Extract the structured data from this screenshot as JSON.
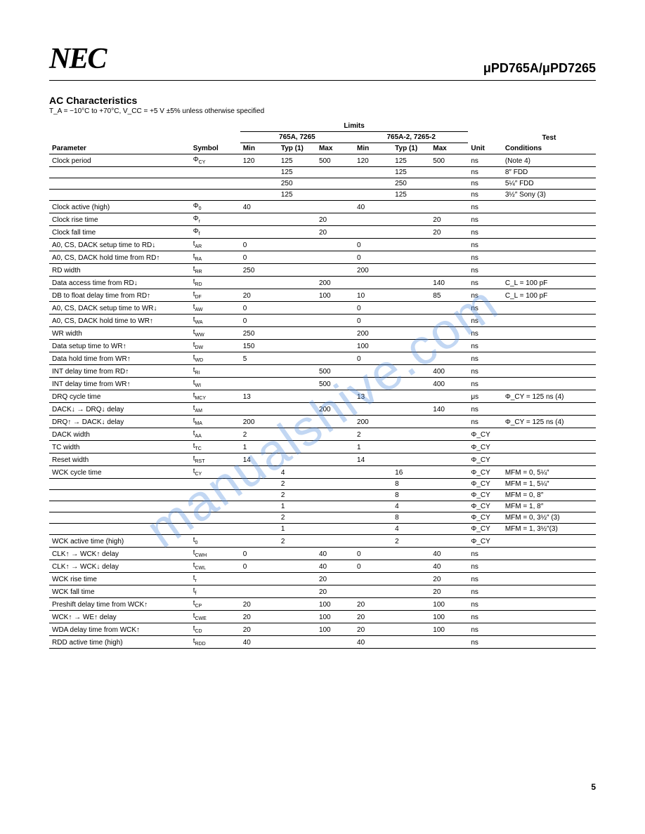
{
  "header": {
    "logo": "NEC",
    "part": "μPD765A/μPD7265"
  },
  "section": {
    "title": "AC Characteristics",
    "conditions": "T_A = −10°C to +70°C, V_CC = +5 V ±5% unless otherwise specified"
  },
  "table": {
    "group_limits": "Limits",
    "group_a": "765A, 7265",
    "group_b": "765A-2, 7265-2",
    "group_test": "Test",
    "h_param": "Parameter",
    "h_symbol": "Symbol",
    "h_min": "Min",
    "h_typ": "Typ (1)",
    "h_max": "Max",
    "h_unit": "Unit",
    "h_cond": "Conditions"
  },
  "rows": [
    {
      "param": "Clock period",
      "sym": "Φ",
      "sub": "CY",
      "a_min": "120",
      "a_typ": "125",
      "a_max": "500",
      "b_min": "120",
      "b_typ": "125",
      "b_max": "500",
      "unit": "ns",
      "cond": "(Note 4)"
    },
    {
      "param": "",
      "sym": "",
      "sub": "",
      "a_min": "",
      "a_typ": "125",
      "a_max": "",
      "b_min": "",
      "b_typ": "125",
      "b_max": "",
      "unit": "ns",
      "cond": "8″ FDD"
    },
    {
      "param": "",
      "sym": "",
      "sub": "",
      "a_min": "",
      "a_typ": "250",
      "a_max": "",
      "b_min": "",
      "b_typ": "250",
      "b_max": "",
      "unit": "ns",
      "cond": "5¼″ FDD"
    },
    {
      "param": "",
      "sym": "",
      "sub": "",
      "a_min": "",
      "a_typ": "125",
      "a_max": "",
      "b_min": "",
      "b_typ": "125",
      "b_max": "",
      "unit": "ns",
      "cond": "3½″ Sony (3)"
    },
    {
      "param": "Clock active (high)",
      "sym": "Φ",
      "sub": "0",
      "a_min": "40",
      "a_typ": "",
      "a_max": "",
      "b_min": "40",
      "b_typ": "",
      "b_max": "",
      "unit": "ns",
      "cond": ""
    },
    {
      "param": "Clock rise time",
      "sym": "Φ",
      "sub": "r",
      "a_min": "",
      "a_typ": "",
      "a_max": "20",
      "b_min": "",
      "b_typ": "",
      "b_max": "20",
      "unit": "ns",
      "cond": ""
    },
    {
      "param": "Clock fall time",
      "sym": "Φ",
      "sub": "f",
      "a_min": "",
      "a_typ": "",
      "a_max": "20",
      "b_min": "",
      "b_typ": "",
      "b_max": "20",
      "unit": "ns",
      "cond": ""
    },
    {
      "param": "A0, CS, DACK setup time to RD↓",
      "sym": "t",
      "sub": "AR",
      "a_min": "0",
      "a_typ": "",
      "a_max": "",
      "b_min": "0",
      "b_typ": "",
      "b_max": "",
      "unit": "ns",
      "cond": ""
    },
    {
      "param": "A0, CS, DACK hold time from RD↑",
      "sym": "t",
      "sub": "RA",
      "a_min": "0",
      "a_typ": "",
      "a_max": "",
      "b_min": "0",
      "b_typ": "",
      "b_max": "",
      "unit": "ns",
      "cond": ""
    },
    {
      "param": "RD width",
      "sym": "t",
      "sub": "RR",
      "a_min": "250",
      "a_typ": "",
      "a_max": "",
      "b_min": "200",
      "b_typ": "",
      "b_max": "",
      "unit": "ns",
      "cond": ""
    },
    {
      "param": "Data access time from RD↓",
      "sym": "t",
      "sub": "RD",
      "a_min": "",
      "a_typ": "",
      "a_max": "200",
      "b_min": "",
      "b_typ": "",
      "b_max": "140",
      "unit": "ns",
      "cond": "C_L = 100 pF"
    },
    {
      "param": "DB to float delay time from RD↑",
      "sym": "t",
      "sub": "DF",
      "a_min": "20",
      "a_typ": "",
      "a_max": "100",
      "b_min": "10",
      "b_typ": "",
      "b_max": "85",
      "unit": "ns",
      "cond": "C_L = 100 pF"
    },
    {
      "param": "A0, CS, DACK setup time to WR↓",
      "sym": "t",
      "sub": "AW",
      "a_min": "0",
      "a_typ": "",
      "a_max": "",
      "b_min": "0",
      "b_typ": "",
      "b_max": "",
      "unit": "ns",
      "cond": ""
    },
    {
      "param": "A0, CS, DACK hold time to WR↑",
      "sym": "t",
      "sub": "WA",
      "a_min": "0",
      "a_typ": "",
      "a_max": "",
      "b_min": "0",
      "b_typ": "",
      "b_max": "",
      "unit": "ns",
      "cond": ""
    },
    {
      "param": "WR width",
      "sym": "t",
      "sub": "WW",
      "a_min": "250",
      "a_typ": "",
      "a_max": "",
      "b_min": "200",
      "b_typ": "",
      "b_max": "",
      "unit": "ns",
      "cond": ""
    },
    {
      "param": "Data setup time to WR↑",
      "sym": "t",
      "sub": "DW",
      "a_min": "150",
      "a_typ": "",
      "a_max": "",
      "b_min": "100",
      "b_typ": "",
      "b_max": "",
      "unit": "ns",
      "cond": ""
    },
    {
      "param": "Data hold time from WR↑",
      "sym": "t",
      "sub": "WD",
      "a_min": "5",
      "a_typ": "",
      "a_max": "",
      "b_min": "0",
      "b_typ": "",
      "b_max": "",
      "unit": "ns",
      "cond": ""
    },
    {
      "param": "INT delay time from RD↑",
      "sym": "t",
      "sub": "RI",
      "a_min": "",
      "a_typ": "",
      "a_max": "500",
      "b_min": "",
      "b_typ": "",
      "b_max": "400",
      "unit": "ns",
      "cond": ""
    },
    {
      "param": "INT delay time from WR↑",
      "sym": "t",
      "sub": "WI",
      "a_min": "",
      "a_typ": "",
      "a_max": "500",
      "b_min": "",
      "b_typ": "",
      "b_max": "400",
      "unit": "ns",
      "cond": ""
    },
    {
      "param": "DRQ cycle time",
      "sym": "t",
      "sub": "MCY",
      "a_min": "13",
      "a_typ": "",
      "a_max": "",
      "b_min": "13",
      "b_typ": "",
      "b_max": "",
      "unit": "μs",
      "cond": "Φ_CY = 125 ns (4)"
    },
    {
      "param": "DACK↓ → DRQ↓ delay",
      "sym": "t",
      "sub": "AM",
      "a_min": "",
      "a_typ": "",
      "a_max": "200",
      "b_min": "",
      "b_typ": "",
      "b_max": "140",
      "unit": "ns",
      "cond": ""
    },
    {
      "param": "DRQ↑ → DACK↓ delay",
      "sym": "t",
      "sub": "MA",
      "a_min": "200",
      "a_typ": "",
      "a_max": "",
      "b_min": "200",
      "b_typ": "",
      "b_max": "",
      "unit": "ns",
      "cond": "Φ_CY = 125 ns (4)"
    },
    {
      "param": "DACK width",
      "sym": "t",
      "sub": "AA",
      "a_min": "2",
      "a_typ": "",
      "a_max": "",
      "b_min": "2",
      "b_typ": "",
      "b_max": "",
      "unit": "Φ_CY",
      "cond": ""
    },
    {
      "param": "TC width",
      "sym": "t",
      "sub": "TC",
      "a_min": "1",
      "a_typ": "",
      "a_max": "",
      "b_min": "1",
      "b_typ": "",
      "b_max": "",
      "unit": "Φ_CY",
      "cond": ""
    },
    {
      "param": "Reset width",
      "sym": "t",
      "sub": "RST",
      "a_min": "14",
      "a_typ": "",
      "a_max": "",
      "b_min": "14",
      "b_typ": "",
      "b_max": "",
      "unit": "Φ_CY",
      "cond": ""
    },
    {
      "param": "WCK cycle time",
      "sym": "t",
      "sub": "CY",
      "a_min": "",
      "a_typ": "4",
      "a_max": "",
      "b_min": "",
      "b_typ": "16",
      "b_max": "",
      "unit": "Φ_CY",
      "cond": "MFM = 0, 5¼″"
    },
    {
      "param": "",
      "sym": "",
      "sub": "",
      "a_min": "",
      "a_typ": "2",
      "a_max": "",
      "b_min": "",
      "b_typ": "8",
      "b_max": "",
      "unit": "Φ_CY",
      "cond": "MFM = 1, 5¼″"
    },
    {
      "param": "",
      "sym": "",
      "sub": "",
      "a_min": "",
      "a_typ": "2",
      "a_max": "",
      "b_min": "",
      "b_typ": "8",
      "b_max": "",
      "unit": "Φ_CY",
      "cond": "MFM = 0, 8″"
    },
    {
      "param": "",
      "sym": "",
      "sub": "",
      "a_min": "",
      "a_typ": "1",
      "a_max": "",
      "b_min": "",
      "b_typ": "4",
      "b_max": "",
      "unit": "Φ_CY",
      "cond": "MFM = 1, 8″"
    },
    {
      "param": "",
      "sym": "",
      "sub": "",
      "a_min": "",
      "a_typ": "2",
      "a_max": "",
      "b_min": "",
      "b_typ": "8",
      "b_max": "",
      "unit": "Φ_CY",
      "cond": "MFM = 0, 3½″ (3)"
    },
    {
      "param": "",
      "sym": "",
      "sub": "",
      "a_min": "",
      "a_typ": "1",
      "a_max": "",
      "b_min": "",
      "b_typ": "4",
      "b_max": "",
      "unit": "Φ_CY",
      "cond": "MFM = 1, 3½″(3)"
    },
    {
      "param": "WCK active time (high)",
      "sym": "t",
      "sub": "0",
      "a_min": "",
      "a_typ": "2",
      "a_max": "",
      "b_min": "",
      "b_typ": "2",
      "b_max": "",
      "unit": "Φ_CY",
      "cond": ""
    },
    {
      "param": "CLK↑ → WCK↑ delay",
      "sym": "t",
      "sub": "CWH",
      "a_min": "0",
      "a_typ": "",
      "a_max": "40",
      "b_min": "0",
      "b_typ": "",
      "b_max": "40",
      "unit": "ns",
      "cond": ""
    },
    {
      "param": "CLK↑ → WCK↓ delay",
      "sym": "t",
      "sub": "CWL",
      "a_min": "0",
      "a_typ": "",
      "a_max": "40",
      "b_min": "0",
      "b_typ": "",
      "b_max": "40",
      "unit": "ns",
      "cond": ""
    },
    {
      "param": "WCK rise time",
      "sym": "t",
      "sub": "r",
      "a_min": "",
      "a_typ": "",
      "a_max": "20",
      "b_min": "",
      "b_typ": "",
      "b_max": "20",
      "unit": "ns",
      "cond": ""
    },
    {
      "param": "WCK fall time",
      "sym": "t",
      "sub": "f",
      "a_min": "",
      "a_typ": "",
      "a_max": "20",
      "b_min": "",
      "b_typ": "",
      "b_max": "20",
      "unit": "ns",
      "cond": ""
    },
    {
      "param": "Preshift delay time from WCK↑",
      "sym": "t",
      "sub": "CP",
      "a_min": "20",
      "a_typ": "",
      "a_max": "100",
      "b_min": "20",
      "b_typ": "",
      "b_max": "100",
      "unit": "ns",
      "cond": ""
    },
    {
      "param": "WCK↑ → WE↑ delay",
      "sym": "t",
      "sub": "CWE",
      "a_min": "20",
      "a_typ": "",
      "a_max": "100",
      "b_min": "20",
      "b_typ": "",
      "b_max": "100",
      "unit": "ns",
      "cond": ""
    },
    {
      "param": "WDA delay time from WCK↑",
      "sym": "t",
      "sub": "CD",
      "a_min": "20",
      "a_typ": "",
      "a_max": "100",
      "b_min": "20",
      "b_typ": "",
      "b_max": "100",
      "unit": "ns",
      "cond": ""
    },
    {
      "param": "RDD active time (high)",
      "sym": "t",
      "sub": "RDD",
      "a_min": "40",
      "a_typ": "",
      "a_max": "",
      "b_min": "40",
      "b_typ": "",
      "b_max": "",
      "unit": "ns",
      "cond": ""
    }
  ],
  "watermark": "manualshive.com",
  "page_num": "5"
}
